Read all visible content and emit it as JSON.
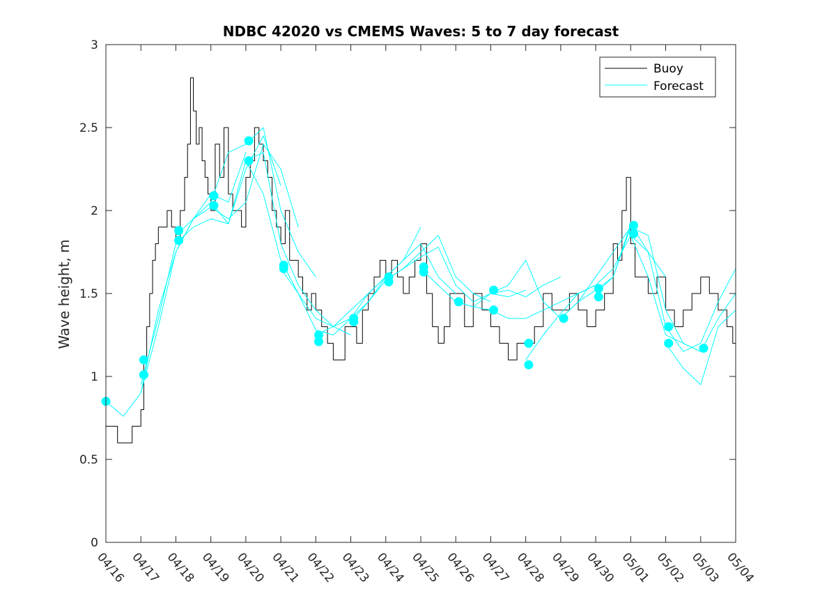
{
  "chart_data": {
    "type": "line",
    "title": "NDBC 42020 vs CMEMS Waves: 5 to 7 day forecast",
    "xlabel": "",
    "ylabel": "Wave height, m",
    "xlim": [
      "04/16",
      "05/04"
    ],
    "ylim": [
      0,
      3
    ],
    "x_ticks": [
      "04/16",
      "04/17",
      "04/18",
      "04/19",
      "04/20",
      "04/21",
      "04/22",
      "04/23",
      "04/24",
      "04/25",
      "04/26",
      "04/27",
      "04/28",
      "04/29",
      "04/30",
      "05/01",
      "05/02",
      "05/03",
      "05/04"
    ],
    "y_ticks": [
      "0",
      "0.5",
      "1",
      "1.5",
      "2",
      "2.5",
      "3"
    ],
    "legend": {
      "placement": "top-right",
      "entries": [
        "Buoy",
        "Forecast"
      ]
    },
    "colors": {
      "buoy": "#000000",
      "forecast": "#00ffff",
      "axes": "#262626"
    },
    "series": [
      {
        "name": "Buoy",
        "type": "step",
        "x": [
          "04/16 00:00",
          "04/16 06:00",
          "04/16 08:00",
          "04/16 12:00",
          "04/16 18:00",
          "04/17 00:00",
          "04/17 02:00",
          "04/17 04:00",
          "04/17 06:00",
          "04/17 08:00",
          "04/17 10:00",
          "04/17 12:00",
          "04/17 15:00",
          "04/17 18:00",
          "04/17 21:00",
          "04/18 00:00",
          "04/18 03:00",
          "04/18 06:00",
          "04/18 08:00",
          "04/18 10:00",
          "04/18 12:00",
          "04/18 14:00",
          "04/18 16:00",
          "04/18 18:00",
          "04/18 20:00",
          "04/18 22:00",
          "04/19 00:00",
          "04/19 03:00",
          "04/19 06:00",
          "04/19 09:00",
          "04/19 12:00",
          "04/19 15:00",
          "04/19 18:00",
          "04/19 21:00",
          "04/20 00:00",
          "04/20 03:00",
          "04/20 06:00",
          "04/20 09:00",
          "04/20 12:00",
          "04/20 15:00",
          "04/20 18:00",
          "04/20 21:00",
          "04/21 00:00",
          "04/21 03:00",
          "04/21 06:00",
          "04/21 09:00",
          "04/21 12:00",
          "04/21 15:00",
          "04/21 18:00",
          "04/21 21:00",
          "04/22 00:00",
          "04/22 04:00",
          "04/22 08:00",
          "04/22 12:00",
          "04/22 16:00",
          "04/22 20:00",
          "04/23 00:00",
          "04/23 04:00",
          "04/23 08:00",
          "04/23 12:00",
          "04/23 16:00",
          "04/23 20:00",
          "04/24 00:00",
          "04/24 04:00",
          "04/24 08:00",
          "04/24 12:00",
          "04/24 16:00",
          "04/24 20:00",
          "04/25 00:00",
          "04/25 04:00",
          "04/25 08:00",
          "04/25 12:00",
          "04/25 16:00",
          "04/25 20:00",
          "04/26 00:00",
          "04/26 06:00",
          "04/26 12:00",
          "04/26 18:00",
          "04/27 00:00",
          "04/27 06:00",
          "04/27 12:00",
          "04/27 18:00",
          "04/28 00:00",
          "04/28 06:00",
          "04/28 12:00",
          "04/28 18:00",
          "04/29 00:00",
          "04/29 06:00",
          "04/29 12:00",
          "04/29 18:00",
          "04/30 00:00",
          "04/30 06:00",
          "04/30 12:00",
          "04/30 15:00",
          "04/30 18:00",
          "04/30 21:00",
          "05/01 00:00",
          "05/01 03:00",
          "05/01 06:00",
          "05/01 12:00",
          "05/01 18:00",
          "05/02 00:00",
          "05/02 06:00",
          "05/02 12:00",
          "05/02 18:00",
          "05/03 00:00",
          "05/03 06:00",
          "05/03 12:00",
          "05/03 18:00",
          "05/03 22:00"
        ],
        "values": [
          0.7,
          0.7,
          0.6,
          0.6,
          0.7,
          0.8,
          1.1,
          1.3,
          1.5,
          1.7,
          1.8,
          1.9,
          1.9,
          2.0,
          1.9,
          1.8,
          2.0,
          2.2,
          2.4,
          2.8,
          2.6,
          2.4,
          2.5,
          2.3,
          2.2,
          2.1,
          2.0,
          2.4,
          2.2,
          2.5,
          2.1,
          2.0,
          2.0,
          1.9,
          2.2,
          2.3,
          2.5,
          2.4,
          2.3,
          2.2,
          2.0,
          1.9,
          1.8,
          2.0,
          1.7,
          1.7,
          1.6,
          1.5,
          1.4,
          1.5,
          1.4,
          1.3,
          1.2,
          1.1,
          1.1,
          1.3,
          1.3,
          1.2,
          1.4,
          1.5,
          1.6,
          1.7,
          1.6,
          1.7,
          1.6,
          1.5,
          1.6,
          1.7,
          1.8,
          1.5,
          1.3,
          1.2,
          1.3,
          1.5,
          1.5,
          1.3,
          1.5,
          1.4,
          1.3,
          1.2,
          1.1,
          1.2,
          1.2,
          1.3,
          1.5,
          1.4,
          1.4,
          1.5,
          1.4,
          1.3,
          1.4,
          1.5,
          1.8,
          1.7,
          2.0,
          2.2,
          1.8,
          1.6,
          1.6,
          1.5,
          1.6,
          1.4,
          1.3,
          1.4,
          1.5,
          1.6,
          1.5,
          1.4,
          1.3,
          1.2
        ]
      },
      {
        "name": "Forecast",
        "x": [
          "04/16 00:00",
          "04/16 12:00",
          "04/17 00:00",
          "04/17 12:00",
          "04/18 00:00",
          "04/18 12:00",
          "04/19 00:00",
          "04/19 12:00",
          "04/20 00:00"
        ],
        "values": [
          0.85,
          0.76,
          0.9,
          1.4,
          1.75,
          1.95,
          2.1,
          2.05,
          2.35
        ]
      },
      {
        "name": "",
        "x": [
          "04/17 00:00",
          "04/17 12:00",
          "04/18 00:00",
          "04/18 12:00",
          "04/19 00:00",
          "04/19 12:00",
          "04/20 00:00",
          "04/20 12:00",
          "04/21 00:00"
        ],
        "values": [
          0.95,
          1.35,
          1.8,
          1.9,
          1.95,
          1.92,
          2.25,
          2.45,
          2.15
        ]
      },
      {
        "name": "",
        "x": [
          "04/17 00:00",
          "04/17 12:00",
          "04/18 00:00",
          "04/18 12:00",
          "04/19 00:00",
          "04/19 12:00",
          "04/20 00:00",
          "04/20 12:00",
          "04/21 00:00",
          "04/21 12:00"
        ],
        "values": [
          0.9,
          1.3,
          1.75,
          1.95,
          2.02,
          1.95,
          2.05,
          2.4,
          2.25,
          1.9
        ]
      },
      {
        "name": "",
        "x": [
          "04/18 00:00",
          "04/18 12:00",
          "04/19 00:00",
          "04/19 12:00",
          "04/20 00:00",
          "04/20 12:00",
          "04/21 00:00",
          "04/21 12:00",
          "04/22 00:00"
        ],
        "values": [
          1.85,
          1.95,
          2.05,
          2.35,
          2.4,
          2.5,
          2.0,
          1.75,
          1.6
        ]
      },
      {
        "name": "",
        "x": [
          "04/19 00:00",
          "04/19 12:00",
          "04/20 00:00",
          "04/20 12:00",
          "04/21 00:00",
          "04/21 12:00",
          "04/22 00:00",
          "04/22 12:00",
          "04/23 00:00"
        ],
        "values": [
          2.05,
          1.92,
          2.3,
          2.35,
          1.8,
          1.55,
          1.4,
          1.3,
          1.25
        ]
      },
      {
        "name": "",
        "x": [
          "04/20 00:00",
          "04/20 12:00",
          "04/21 00:00",
          "04/21 12:00",
          "04/22 00:00",
          "04/22 12:00",
          "04/23 00:00",
          "04/23 12:00",
          "04/24 00:00"
        ],
        "values": [
          2.3,
          2.1,
          1.7,
          1.5,
          1.35,
          1.3,
          1.4,
          1.5,
          1.6
        ]
      },
      {
        "name": "",
        "x": [
          "04/21 00:00",
          "04/21 12:00",
          "04/22 00:00",
          "04/22 12:00",
          "04/23 00:00",
          "04/23 12:00",
          "04/24 00:00",
          "04/24 12:00",
          "04/25 00:00"
        ],
        "values": [
          1.65,
          1.5,
          1.28,
          1.25,
          1.35,
          1.5,
          1.6,
          1.7,
          1.9
        ]
      },
      {
        "name": "",
        "x": [
          "04/22 00:00",
          "04/22 12:00",
          "04/23 00:00",
          "04/23 12:00",
          "04/24 00:00",
          "04/24 12:00",
          "04/25 00:00",
          "04/25 12:00",
          "04/26 00:00"
        ],
        "values": [
          1.25,
          1.3,
          1.35,
          1.45,
          1.6,
          1.7,
          1.8,
          1.6,
          1.5
        ]
      },
      {
        "name": "",
        "x": [
          "04/23 00:00",
          "04/23 12:00",
          "04/24 00:00",
          "04/24 12:00",
          "04/25 00:00",
          "04/25 12:00",
          "04/26 00:00",
          "04/26 12:00",
          "04/27 00:00"
        ],
        "values": [
          1.33,
          1.45,
          1.58,
          1.65,
          1.75,
          1.85,
          1.6,
          1.5,
          1.45
        ]
      },
      {
        "name": "",
        "x": [
          "04/24 00:00",
          "04/24 12:00",
          "04/25 00:00",
          "04/25 12:00",
          "04/26 00:00",
          "04/26 12:00",
          "04/27 00:00",
          "04/27 12:00",
          "04/28 00:00"
        ],
        "values": [
          1.58,
          1.65,
          1.72,
          1.78,
          1.55,
          1.45,
          1.5,
          1.48,
          1.52
        ]
      },
      {
        "name": "",
        "x": [
          "04/25 00:00",
          "04/25 12:00",
          "04/26 00:00",
          "04/26 12:00",
          "04/27 00:00",
          "04/27 12:00",
          "04/28 00:00",
          "04/28 12:00",
          "04/29 00:00"
        ],
        "values": [
          1.65,
          1.55,
          1.45,
          1.42,
          1.5,
          1.52,
          1.48,
          1.55,
          1.6
        ]
      },
      {
        "name": "",
        "x": [
          "04/26 00:00",
          "04/26 12:00",
          "04/27 00:00",
          "04/27 12:00",
          "04/28 00:00",
          "04/28 12:00",
          "04/29 00:00",
          "04/29 12:00",
          "04/30 00:00"
        ],
        "values": [
          1.45,
          1.42,
          1.4,
          1.35,
          1.35,
          1.4,
          1.45,
          1.5,
          1.55
        ]
      },
      {
        "name": "",
        "x": [
          "04/27 00:00",
          "04/27 12:00",
          "04/28 00:00",
          "04/28 12:00",
          "04/29 00:00",
          "04/29 12:00",
          "04/30 00:00",
          "04/30 12:00",
          "05/01 00:00"
        ],
        "values": [
          1.5,
          1.55,
          1.7,
          1.45,
          1.35,
          1.45,
          1.6,
          1.75,
          1.9
        ]
      },
      {
        "name": "",
        "x": [
          "04/28 00:00",
          "04/28 12:00",
          "04/29 00:00",
          "04/29 12:00",
          "04/30 00:00",
          "04/30 12:00",
          "05/01 00:00",
          "05/01 12:00",
          "05/02 00:00"
        ],
        "values": [
          1.1,
          1.25,
          1.38,
          1.5,
          1.55,
          1.65,
          1.85,
          1.75,
          1.6
        ]
      },
      {
        "name": "",
        "x": [
          "04/29 00:00",
          "04/29 12:00",
          "04/30 00:00",
          "04/30 12:00",
          "05/01 00:00",
          "05/01 12:00",
          "05/02 00:00",
          "05/02 12:00",
          "05/03 00:00"
        ],
        "values": [
          1.35,
          1.45,
          1.52,
          1.6,
          1.9,
          1.85,
          1.4,
          1.2,
          1.15
        ]
      },
      {
        "name": "",
        "x": [
          "04/30 00:00",
          "04/30 12:00",
          "05/01 00:00",
          "05/01 12:00",
          "05/02 00:00",
          "05/02 12:00",
          "05/03 00:00",
          "05/03 12:00",
          "05/04 00:00"
        ],
        "values": [
          1.5,
          1.6,
          1.92,
          1.75,
          1.3,
          1.15,
          1.2,
          1.45,
          1.65
        ]
      },
      {
        "name": "",
        "x": [
          "05/01 00:00",
          "05/01 12:00",
          "05/02 00:00",
          "05/02 12:00",
          "05/03 00:00",
          "05/03 12:00",
          "05/04 00:00"
        ],
        "values": [
          1.85,
          1.6,
          1.25,
          1.2,
          1.15,
          1.35,
          1.5
        ]
      },
      {
        "name": "",
        "x": [
          "05/02 00:00",
          "05/02 12:00",
          "05/03 00:00",
          "05/03 12:00",
          "05/04 00:00"
        ],
        "values": [
          1.2,
          1.05,
          0.95,
          1.3,
          1.4
        ]
      }
    ],
    "markers": {
      "x": [
        "04/16 00:00",
        "04/17 02:00",
        "04/17 02:00",
        "04/18 02:00",
        "04/18 02:00",
        "04/19 02:00",
        "04/19 02:00",
        "04/20 02:00",
        "04/20 02:00",
        "04/21 02:00",
        "04/21 02:00",
        "04/22 02:00",
        "04/22 02:00",
        "04/23 02:00",
        "04/23 02:00",
        "04/24 02:00",
        "04/24 02:00",
        "04/25 02:00",
        "04/25 02:00",
        "04/26 02:00",
        "04/27 02:00",
        "04/27 02:00",
        "04/28 02:00",
        "04/28 02:00",
        "04/29 02:00",
        "04/30 02:00",
        "04/30 02:00",
        "05/01 02:00",
        "05/01 02:00",
        "05/02 02:00",
        "05/02 02:00",
        "05/03 02:00"
      ],
      "values": [
        0.85,
        1.1,
        1.01,
        1.88,
        1.82,
        2.09,
        2.03,
        2.42,
        2.3,
        1.67,
        1.65,
        1.25,
        1.21,
        1.35,
        1.33,
        1.6,
        1.57,
        1.66,
        1.63,
        1.45,
        1.52,
        1.4,
        1.2,
        1.07,
        1.35,
        1.53,
        1.48,
        1.91,
        1.86,
        1.3,
        1.2,
        1.17
      ]
    }
  }
}
